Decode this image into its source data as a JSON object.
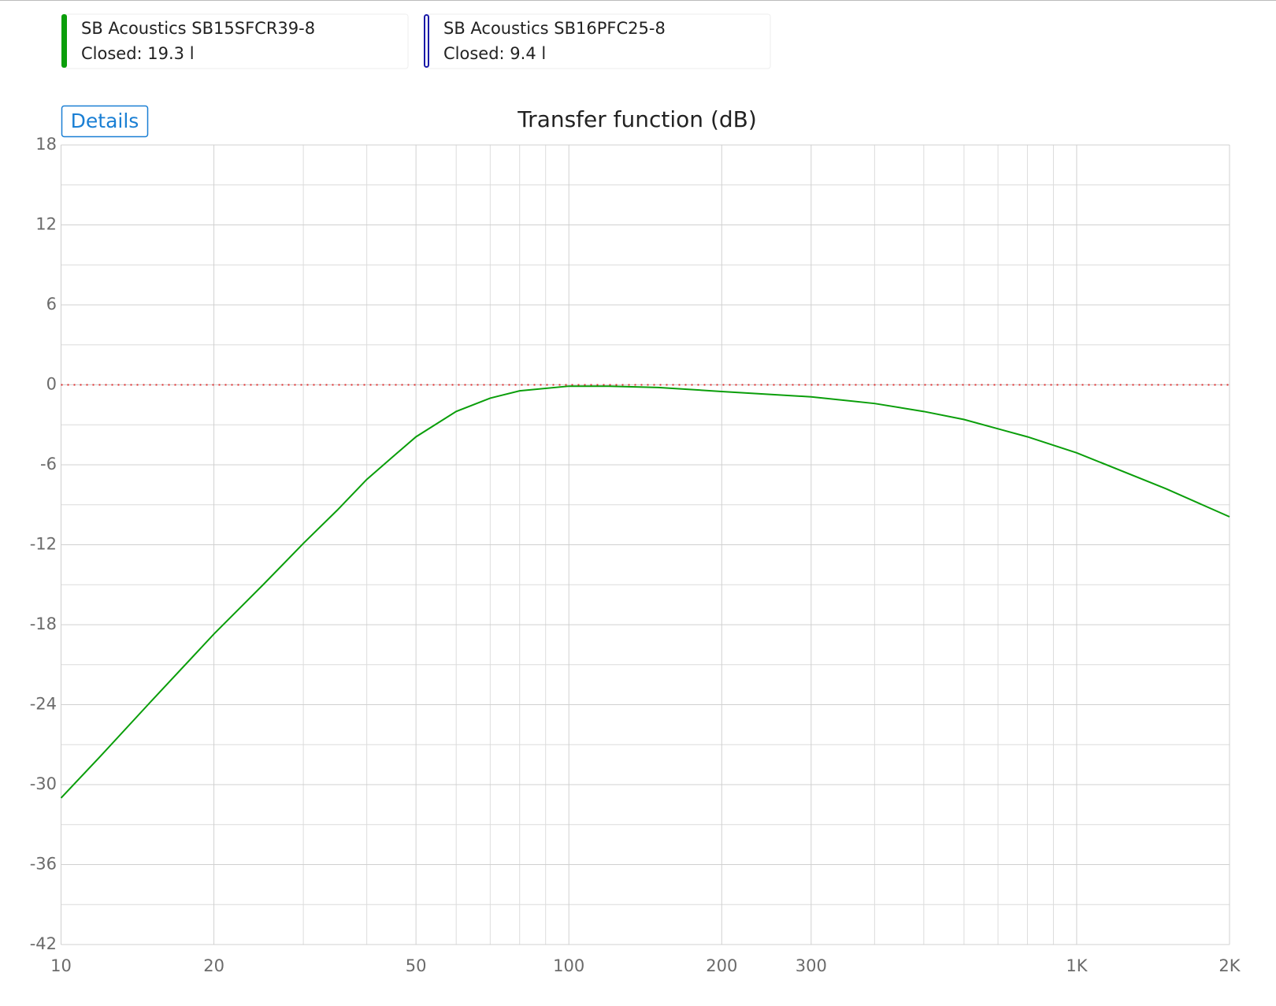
{
  "chart_data": {
    "type": "line",
    "title": "Transfer function (dB)",
    "button": "Details",
    "x": [
      10,
      12,
      15,
      20,
      25,
      30,
      35,
      40,
      45,
      50,
      60,
      70,
      80,
      100,
      120,
      150,
      200,
      300,
      400,
      500,
      600,
      700,
      800,
      1000,
      1500,
      2000
    ],
    "series": [
      {
        "name": "SB Acoustics SB15SFCR39-8",
        "detail": "Closed: 19.3 l",
        "color": "#0a9e0a",
        "visible": true,
        "values": [
          -31.0,
          -27.8,
          -23.8,
          -18.7,
          -15.0,
          -11.9,
          -9.4,
          -7.1,
          -5.4,
          -3.9,
          -2.0,
          -1.0,
          -0.45,
          -0.1,
          -0.1,
          -0.2,
          -0.5,
          -0.9,
          -1.4,
          -2.0,
          -2.6,
          -3.3,
          -3.9,
          -5.1,
          -7.8,
          -9.9
        ]
      },
      {
        "name": "SB Acoustics SB16PFC25-8",
        "detail": "Closed: 9.4 l",
        "color": "#1a1aa8",
        "visible": false
      }
    ],
    "xscale": "log",
    "xlim": [
      10,
      2000
    ],
    "xticks": [
      10,
      20,
      50,
      100,
      200,
      300,
      {
        "value": 1000,
        "label": "1K"
      },
      {
        "value": 2000,
        "label": "2K"
      }
    ],
    "xminor": [
      30,
      40,
      60,
      70,
      80,
      90,
      400,
      500,
      600,
      700,
      800,
      900
    ],
    "ylim": [
      -42,
      18
    ],
    "yticks": [
      -42,
      -36,
      -30,
      -24,
      -18,
      -12,
      -6,
      0,
      6,
      12,
      18
    ],
    "yminor": [
      -39,
      -33,
      -27,
      -21,
      -15,
      -9,
      -3,
      3,
      9,
      15
    ],
    "reference_line": {
      "value": 0,
      "color": "#e03030"
    },
    "grid": true
  }
}
